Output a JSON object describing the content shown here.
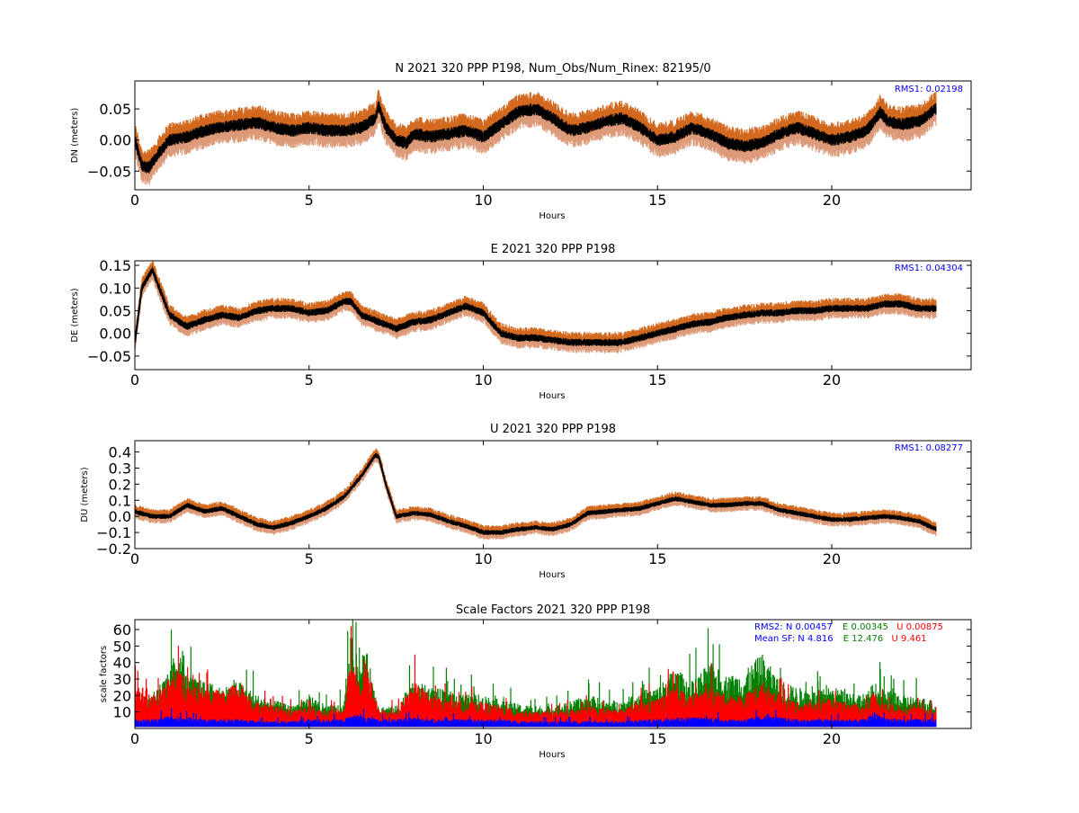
{
  "colors": {
    "upper_band": "#d2691e",
    "lower_band": "#dc9a78",
    "series_black": "#000000",
    "rms_text": "#0000ff",
    "sf_n": "#0000ff",
    "sf_e": "#008000",
    "sf_u": "#ff0000"
  },
  "chart_data": [
    {
      "type": "line",
      "title": "N 2021 320 PPP  P198, Num_Obs/Num_Rinex: 82195/0",
      "xlabel": "Hours",
      "ylabel": "DN (meters)",
      "xlim": [
        0,
        24
      ],
      "ylim": [
        -0.08,
        0.095
      ],
      "xticks": [
        0,
        5,
        10,
        15,
        20
      ],
      "xtick_labels": [
        "0",
        "5",
        "10",
        "15",
        "20"
      ],
      "yticks": [
        0.05,
        0.0,
        -0.05
      ],
      "ytick_labels": [
        "0.05",
        "0.00",
        "−0.05"
      ],
      "annotation": "RMS1:  0.02198",
      "band_halfwidth": 0.022,
      "x": [
        0,
        0.2,
        0.4,
        0.7,
        1.0,
        1.5,
        2.0,
        2.5,
        3.0,
        3.5,
        4.0,
        4.5,
        5.0,
        5.5,
        6.0,
        6.5,
        6.9,
        7.0,
        7.2,
        7.5,
        7.8,
        8.0,
        8.5,
        9.0,
        9.5,
        10.0,
        10.5,
        11.0,
        11.5,
        12.0,
        12.5,
        13.0,
        13.5,
        14.0,
        14.5,
        15.0,
        15.5,
        16.0,
        16.5,
        17.0,
        17.5,
        18.0,
        18.5,
        19.0,
        19.5,
        20.0,
        20.5,
        21.0,
        21.4,
        21.6,
        22.0,
        22.5,
        23.0
      ],
      "series": [
        {
          "values": [
            0.0,
            -0.04,
            -0.045,
            -0.02,
            0.0,
            0.005,
            0.015,
            0.02,
            0.025,
            0.028,
            0.02,
            0.015,
            0.02,
            0.015,
            0.015,
            0.02,
            0.035,
            0.055,
            0.02,
            0.0,
            -0.005,
            0.01,
            0.005,
            0.01,
            0.015,
            0.005,
            0.025,
            0.045,
            0.05,
            0.035,
            0.015,
            0.02,
            0.03,
            0.035,
            0.02,
            0.0,
            0.005,
            0.02,
            0.01,
            -0.005,
            -0.01,
            -0.005,
            0.01,
            0.02,
            0.01,
            0.0,
            0.005,
            0.015,
            0.045,
            0.03,
            0.025,
            0.03,
            0.05
          ]
        }
      ]
    },
    {
      "type": "line",
      "title": "E 2021 320 PPP  P198",
      "xlabel": "Hours",
      "ylabel": "DE (meters)",
      "xlim": [
        0,
        24
      ],
      "ylim": [
        -0.08,
        0.16
      ],
      "xticks": [
        0,
        5,
        10,
        15,
        20
      ],
      "xtick_labels": [
        "0",
        "5",
        "10",
        "15",
        "20"
      ],
      "yticks": [
        0.15,
        0.1,
        0.05,
        0.0,
        -0.05
      ],
      "ytick_labels": [
        "0.15",
        "0.10",
        "0.05",
        "0.00",
        "−0.05"
      ],
      "annotation": "RMS1:  0.04304",
      "band_halfwidth": 0.018,
      "x": [
        0,
        0.2,
        0.5,
        0.8,
        1.0,
        1.5,
        2.0,
        2.5,
        3.0,
        3.5,
        4.0,
        4.5,
        5.0,
        5.5,
        6.0,
        6.2,
        6.5,
        7.0,
        7.5,
        8.0,
        8.5,
        9.0,
        9.5,
        10.0,
        10.5,
        11.0,
        11.5,
        12.0,
        12.5,
        13.0,
        13.5,
        14.0,
        14.5,
        15.0,
        15.5,
        16.0,
        16.5,
        17.0,
        17.5,
        18.0,
        18.5,
        19.0,
        19.5,
        20.0,
        20.5,
        21.0,
        21.5,
        22.0,
        22.5,
        23.0
      ],
      "series": [
        {
          "values": [
            -0.02,
            0.1,
            0.14,
            0.08,
            0.04,
            0.015,
            0.03,
            0.04,
            0.035,
            0.05,
            0.055,
            0.055,
            0.045,
            0.05,
            0.07,
            0.07,
            0.04,
            0.025,
            0.01,
            0.025,
            0.03,
            0.045,
            0.06,
            0.045,
            0.0,
            -0.01,
            -0.01,
            -0.015,
            -0.02,
            -0.02,
            -0.02,
            -0.02,
            -0.01,
            0.0,
            0.01,
            0.02,
            0.025,
            0.035,
            0.04,
            0.045,
            0.045,
            0.05,
            0.05,
            0.055,
            0.055,
            0.055,
            0.065,
            0.065,
            0.055,
            0.055
          ]
        }
      ]
    },
    {
      "type": "line",
      "title": "U 2021 320 PPP  P198",
      "xlabel": "Hours",
      "ylabel": "DU (meters)",
      "xlim": [
        0,
        24
      ],
      "ylim": [
        -0.2,
        0.47
      ],
      "xticks": [
        0,
        5,
        10,
        15,
        20
      ],
      "xtick_labels": [
        "0",
        "5",
        "10",
        "15",
        "20"
      ],
      "yticks": [
        0.4,
        0.3,
        0.2,
        0.1,
        0.0,
        -0.1,
        -0.2
      ],
      "ytick_labels": [
        "0.4",
        "0.3",
        "0.2",
        "0.1",
        "0.0",
        "−0.1",
        "−0.2"
      ],
      "annotation": "RMS1:  0.08277",
      "band_halfwidth": 0.035,
      "x": [
        0,
        0.5,
        1.0,
        1.5,
        2.0,
        2.5,
        3.0,
        3.5,
        4.0,
        4.5,
        5.0,
        5.5,
        6.0,
        6.5,
        6.9,
        7.0,
        7.2,
        7.5,
        8.0,
        8.5,
        9.0,
        9.5,
        10.0,
        10.5,
        11.0,
        11.5,
        12.0,
        12.5,
        13.0,
        13.5,
        14.0,
        14.5,
        15.0,
        15.5,
        16.0,
        16.5,
        17.0,
        17.5,
        18.0,
        18.5,
        19.0,
        19.5,
        20.0,
        20.5,
        21.0,
        21.5,
        22.0,
        22.5,
        23.0
      ],
      "series": [
        {
          "values": [
            0.03,
            0.0,
            0.0,
            0.07,
            0.03,
            0.05,
            0.0,
            -0.05,
            -0.07,
            -0.04,
            0.0,
            0.05,
            0.12,
            0.25,
            0.38,
            0.37,
            0.2,
            0.0,
            0.02,
            0.01,
            -0.03,
            -0.06,
            -0.1,
            -0.1,
            -0.08,
            -0.07,
            -0.08,
            -0.05,
            0.02,
            0.03,
            0.04,
            0.05,
            0.08,
            0.11,
            0.09,
            0.07,
            0.07,
            0.08,
            0.08,
            0.04,
            0.02,
            0.0,
            -0.02,
            -0.02,
            -0.01,
            0.0,
            -0.01,
            -0.03,
            -0.08
          ]
        }
      ]
    },
    {
      "type": "scatter",
      "title": "Scale Factors 2021 320 PPP  P198",
      "xlabel": "Hours",
      "ylabel": "scale factors",
      "xlim": [
        0,
        24
      ],
      "ylim": [
        0,
        66
      ],
      "xticks": [
        0,
        5,
        10,
        15,
        20
      ],
      "xtick_labels": [
        "0",
        "5",
        "10",
        "15",
        "20"
      ],
      "yticks": [
        60,
        50,
        40,
        30,
        20,
        10
      ],
      "ytick_labels": [
        "60",
        "50",
        "40",
        "30",
        "20",
        "10"
      ],
      "annotation_rms": {
        "prefix": "RMS2: N  0.00457",
        "e": "E  0.00345",
        "u": "U  0.00875"
      },
      "annotation_mean": {
        "prefix": "Mean SF: N   4.816",
        "e": "E  12.476",
        "u": "U   9.461"
      },
      "x": [
        0,
        0.5,
        1.0,
        1.2,
        1.5,
        2.0,
        2.5,
        3.0,
        3.5,
        4.0,
        4.5,
        5.0,
        5.5,
        6.0,
        6.2,
        6.5,
        6.6,
        7.0,
        7.5,
        8.0,
        8.5,
        9.0,
        9.5,
        10.0,
        10.5,
        11.0,
        11.5,
        12.0,
        12.5,
        13.0,
        13.5,
        14.0,
        14.5,
        15.0,
        15.5,
        16.0,
        16.5,
        17.0,
        17.5,
        18.0,
        18.5,
        19.0,
        19.5,
        20.0,
        20.5,
        21.0,
        21.2,
        21.5,
        22.0,
        22.5,
        23.0
      ],
      "series": [
        {
          "name": "N",
          "values": [
            5,
            5,
            7,
            6,
            6,
            5,
            5,
            5,
            4,
            4,
            4,
            5,
            5,
            5,
            7,
            8,
            6,
            5,
            5,
            6,
            5,
            5,
            5,
            5,
            5,
            4,
            4,
            4,
            4,
            4,
            4,
            4,
            5,
            5,
            6,
            6,
            6,
            5,
            5,
            7,
            6,
            5,
            5,
            5,
            5,
            5,
            9,
            6,
            5,
            5,
            5
          ]
        },
        {
          "name": "E",
          "values": [
            15,
            20,
            30,
            45,
            28,
            25,
            22,
            25,
            18,
            15,
            12,
            18,
            12,
            13,
            50,
            30,
            45,
            12,
            12,
            25,
            22,
            20,
            18,
            18,
            15,
            13,
            12,
            12,
            14,
            18,
            15,
            15,
            20,
            22,
            32,
            25,
            35,
            28,
            30,
            40,
            25,
            22,
            20,
            22,
            20,
            18,
            25,
            20,
            18,
            17,
            15
          ]
        },
        {
          "name": "U",
          "values": [
            25,
            18,
            25,
            35,
            22,
            22,
            20,
            25,
            14,
            12,
            10,
            12,
            10,
            10,
            40,
            20,
            40,
            10,
            10,
            25,
            18,
            15,
            14,
            14,
            12,
            10,
            9,
            9,
            10,
            12,
            11,
            10,
            14,
            16,
            22,
            18,
            22,
            18,
            18,
            25,
            18,
            14,
            14,
            16,
            14,
            12,
            20,
            14,
            12,
            12,
            10
          ]
        }
      ]
    }
  ]
}
